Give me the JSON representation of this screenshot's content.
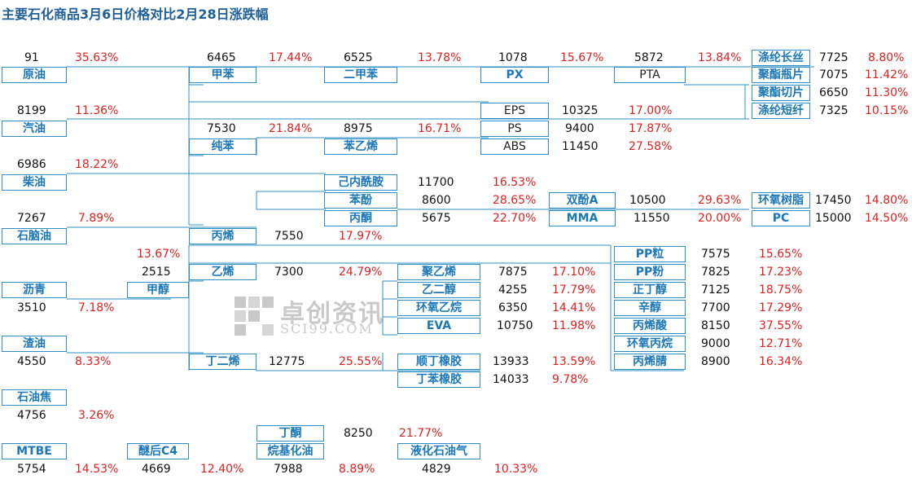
{
  "title": "主要石化商品3月6日价格对比2月28日涨跌幅",
  "watermark": {
    "name": "卓创资讯",
    "site": "SCI99.COM"
  },
  "nodes": [
    {
      "id": "crude",
      "label": "原油",
      "price": "91",
      "change": "35.63%"
    },
    {
      "id": "toluene",
      "label": "甲苯",
      "price": "6465",
      "change": "17.44%"
    },
    {
      "id": "xylene",
      "label": "二甲苯",
      "price": "6525",
      "change": "13.78%"
    },
    {
      "id": "px",
      "label": "PX",
      "price": "1078",
      "change": "15.67%"
    },
    {
      "id": "pta",
      "label": "PTA",
      "price": "5872",
      "change": "13.84%"
    },
    {
      "id": "filament",
      "label": "涤纶长丝",
      "price": "7725",
      "change": "8.80%"
    },
    {
      "id": "bottle",
      "label": "聚酯瓶片",
      "price": "7075",
      "change": "11.42%"
    },
    {
      "id": "chip",
      "label": "聚酯切片",
      "price": "6650",
      "change": "11.30%"
    },
    {
      "id": "staple",
      "label": "涤纶短纤",
      "price": "7325",
      "change": "10.15%"
    },
    {
      "id": "gasoline",
      "label": "汽油",
      "price": "8199",
      "change": "11.36%"
    },
    {
      "id": "eps",
      "label": "EPS",
      "price": "10325",
      "change": "17.00%"
    },
    {
      "id": "ps",
      "label": "PS",
      "price": "9400",
      "change": "17.87%"
    },
    {
      "id": "abs",
      "label": "ABS",
      "price": "11450",
      "change": "27.58%"
    },
    {
      "id": "benzene",
      "label": "纯苯",
      "price": "7530",
      "change": "21.84%"
    },
    {
      "id": "styrene",
      "label": "苯乙烯",
      "price": "8975",
      "change": "16.71%"
    },
    {
      "id": "diesel",
      "label": "柴油",
      "price": "6986",
      "change": "18.22%"
    },
    {
      "id": "caprolactam",
      "label": "己内酰胺",
      "price": "11700",
      "change": "16.53%"
    },
    {
      "id": "phenol",
      "label": "苯酚",
      "price": "8600",
      "change": "28.65%"
    },
    {
      "id": "bpa",
      "label": "双酚A",
      "price": "10500",
      "change": "29.63%"
    },
    {
      "id": "epoxy",
      "label": "环氧树脂",
      "price": "17450",
      "change": "14.80%"
    },
    {
      "id": "naphtha",
      "label": "石脑油",
      "price": "7267",
      "change": "7.89%"
    },
    {
      "id": "acetone",
      "label": "丙酮",
      "price": "5675",
      "change": "22.70%"
    },
    {
      "id": "mma",
      "label": "MMA",
      "price": "11550",
      "change": "20.00%"
    },
    {
      "id": "pc",
      "label": "PC",
      "price": "15000",
      "change": "14.50%"
    },
    {
      "id": "propylene",
      "label": "丙烯",
      "price": "7550",
      "change": "17.97%"
    },
    {
      "id": "pp_pellet",
      "label": "PP粒",
      "price": "7575",
      "change": "15.65%"
    },
    {
      "id": "methanol",
      "label": "甲醇",
      "price": "2515",
      "change": "13.67%"
    },
    {
      "id": "ethylene",
      "label": "乙烯",
      "price": "7300",
      "change": "24.79%"
    },
    {
      "id": "pe",
      "label": "聚乙烯",
      "price": "7875",
      "change": "17.10%"
    },
    {
      "id": "pp_powder",
      "label": "PP粉",
      "price": "7825",
      "change": "17.23%"
    },
    {
      "id": "asphalt",
      "label": "沥青",
      "price": "3510",
      "change": "7.18%"
    },
    {
      "id": "meg",
      "label": "乙二醇",
      "price": "4255",
      "change": "17.79%"
    },
    {
      "id": "butanol",
      "label": "正丁醇",
      "price": "7125",
      "change": "18.75%"
    },
    {
      "id": "eo",
      "label": "环氧乙烷",
      "price": "6350",
      "change": "14.41%"
    },
    {
      "id": "octanol",
      "label": "辛醇",
      "price": "7700",
      "change": "17.29%"
    },
    {
      "id": "eva",
      "label": "EVA",
      "price": "10750",
      "change": "11.98%"
    },
    {
      "id": "acrylic",
      "label": "丙烯酸",
      "price": "8150",
      "change": "37.55%"
    },
    {
      "id": "residue",
      "label": "渣油",
      "price": "4550",
      "change": "8.33%"
    },
    {
      "id": "po",
      "label": "环氧丙烷",
      "price": "9000",
      "change": "12.71%"
    },
    {
      "id": "butadiene",
      "label": "丁二烯",
      "price": "12775",
      "change": "25.55%"
    },
    {
      "id": "br",
      "label": "顺丁橡胶",
      "price": "13933",
      "change": "13.59%"
    },
    {
      "id": "acn",
      "label": "丙烯腈",
      "price": "8900",
      "change": "16.34%"
    },
    {
      "id": "sbr",
      "label": "丁苯橡胶",
      "price": "14033",
      "change": "9.78%"
    },
    {
      "id": "coke",
      "label": "石油焦",
      "price": "4756",
      "change": "3.26%"
    },
    {
      "id": "mek",
      "label": "丁酮",
      "price": "8250",
      "change": "21.77%"
    },
    {
      "id": "mtbe",
      "label": "MTBE",
      "price": "5754",
      "change": "14.53%"
    },
    {
      "id": "c4",
      "label": "醚后C4",
      "price": "4669",
      "change": "12.40%"
    },
    {
      "id": "alkylate",
      "label": "烷基化油",
      "price": "7988",
      "change": "8.89%"
    },
    {
      "id": "lpg",
      "label": "液化石油气",
      "price": "4829",
      "change": "10.33%"
    }
  ]
}
